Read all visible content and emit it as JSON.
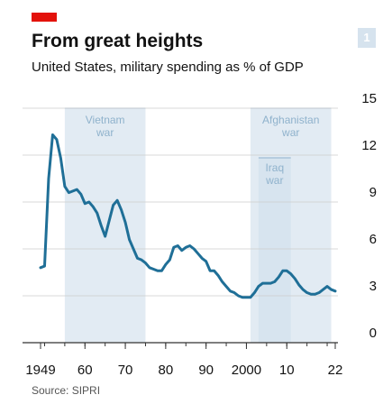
{
  "header": {
    "title": "From great heights",
    "subtitle": "United States, military spending as % of GDP",
    "badge": "1",
    "source": "Source: SIPRI"
  },
  "colors": {
    "accent": "#e3120b",
    "line": "#1f6f97",
    "shade": "#d6e3ee",
    "shade_label": "#8fb2cc",
    "grid": "#cccccc",
    "axis": "#333333",
    "text": "#121212"
  },
  "chart_data": {
    "type": "line",
    "title": "From great heights",
    "subtitle": "United States, military spending as % of GDP",
    "xlabel": "",
    "ylabel": "",
    "xlim": [
      1949,
      2022
    ],
    "ylim": [
      0,
      15
    ],
    "grid": true,
    "y_ticks": [
      0,
      3,
      6,
      9,
      12,
      15
    ],
    "x_ticks": [
      {
        "value": 1949,
        "label": "1949"
      },
      {
        "value": 1960,
        "label": "60"
      },
      {
        "value": 1970,
        "label": "70"
      },
      {
        "value": 1980,
        "label": "80"
      },
      {
        "value": 1990,
        "label": "90"
      },
      {
        "value": 2000,
        "label": "2000"
      },
      {
        "value": 2010,
        "label": "10"
      },
      {
        "value": 2022,
        "label": "22"
      }
    ],
    "annotations": [
      {
        "label": "Vietnam\nwar",
        "start": 1955,
        "end": 1975
      },
      {
        "label": "Afghanistan\nwar",
        "start": 2001,
        "end": 2021
      },
      {
        "label": "Iraq\nwar",
        "start": 2003,
        "end": 2011
      }
    ],
    "series": [
      {
        "x": [
          1949,
          1950,
          1951,
          1952,
          1953,
          1954,
          1955,
          1956,
          1957,
          1958,
          1959,
          1960,
          1961,
          1962,
          1963,
          1964,
          1965,
          1966,
          1967,
          1968,
          1969,
          1970,
          1971,
          1972,
          1973,
          1974,
          1975,
          1976,
          1977,
          1978,
          1979,
          1980,
          1981,
          1982,
          1983,
          1984,
          1985,
          1986,
          1987,
          1988,
          1989,
          1990,
          1991,
          1992,
          1993,
          1994,
          1995,
          1996,
          1997,
          1998,
          1999,
          2000,
          2001,
          2002,
          2003,
          2004,
          2005,
          2006,
          2007,
          2008,
          2009,
          2010,
          2011,
          2012,
          2013,
          2014,
          2015,
          2016,
          2017,
          2018,
          2019,
          2020,
          2021,
          2022
        ],
        "values": [
          4.8,
          4.9,
          10.5,
          13.3,
          13.0,
          11.8,
          10.0,
          9.6,
          9.7,
          9.8,
          9.5,
          8.9,
          9.0,
          8.7,
          8.3,
          7.5,
          6.8,
          7.8,
          8.8,
          9.1,
          8.5,
          7.7,
          6.6,
          6.0,
          5.4,
          5.3,
          5.1,
          4.8,
          4.7,
          4.6,
          4.6,
          5.0,
          5.3,
          6.1,
          6.2,
          5.9,
          6.1,
          6.2,
          6.0,
          5.7,
          5.4,
          5.2,
          4.6,
          4.6,
          4.3,
          3.9,
          3.6,
          3.3,
          3.2,
          3.0,
          2.9,
          2.9,
          2.9,
          3.2,
          3.6,
          3.8,
          3.8,
          3.8,
          3.9,
          4.2,
          4.6,
          4.6,
          4.4,
          4.1,
          3.7,
          3.4,
          3.2,
          3.1,
          3.1,
          3.2,
          3.4,
          3.6,
          3.4,
          3.3
        ]
      }
    ]
  }
}
